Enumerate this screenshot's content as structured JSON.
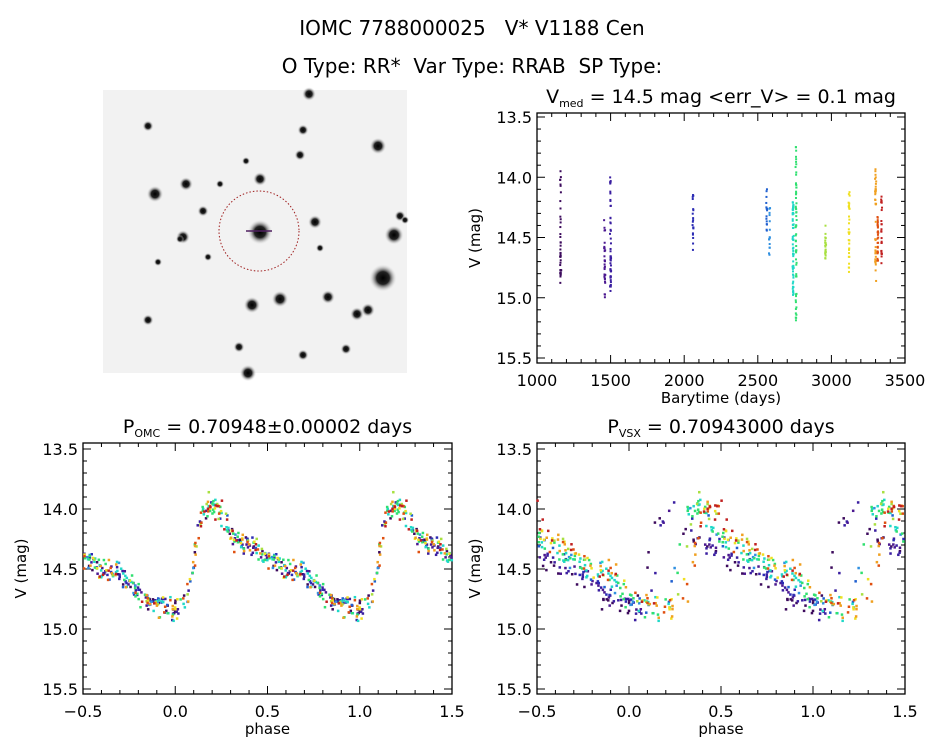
{
  "header": {
    "title": "IOMC 7788000025   V* V1188 Cen",
    "subtitle": "O Type: RR*  Var Type: RRAB  SP Type:"
  },
  "chart_data": [
    {
      "type": "image",
      "description_label": "",
      "stars_field": true
    },
    {
      "type": "scatter",
      "title_main": "V",
      "title_sub": "med",
      "title_rest": " = 14.5 mag <err_V> = 0.1 mag",
      "xlabel": "Barytime (days)",
      "ylabel": "V (mag)",
      "xlim": [
        1000,
        3500
      ],
      "ylim": [
        13.5,
        15.5
      ],
      "y_inverted": true,
      "xticks": [
        "1000",
        "1500",
        "2000",
        "2500",
        "3000",
        "3500"
      ],
      "yticks": [
        "13.5",
        "14.0",
        "14.5",
        "15.0",
        "15.5"
      ],
      "seasons": [
        {
          "t": 1160,
          "vmin": 13.95,
          "vmax": 14.88,
          "color": "#3c0a5c",
          "n": 40,
          "vsx_shift": 0.0
        },
        {
          "t": 1460,
          "vmin": 14.3,
          "vmax": 15.0,
          "color": "#4b1890",
          "n": 30,
          "vsx_shift": 0.05
        },
        {
          "t": 1500,
          "vmin": 14.0,
          "vmax": 14.95,
          "color": "#3a1ea0",
          "n": 50,
          "vsx_shift": 0.05
        },
        {
          "t": 2060,
          "vmin": 14.1,
          "vmax": 14.62,
          "color": "#2c2cb4",
          "n": 20,
          "vsx_shift": 0.1
        },
        {
          "t": 2560,
          "vmin": 14.08,
          "vmax": 14.5,
          "color": "#2060d0",
          "n": 15,
          "vsx_shift": 0.15
        },
        {
          "t": 2580,
          "vmin": 14.25,
          "vmax": 14.65,
          "color": "#3090e0",
          "n": 15,
          "vsx_shift": 0.15
        },
        {
          "t": 2740,
          "vmin": 14.2,
          "vmax": 15.0,
          "color": "#20d8c8",
          "n": 60,
          "vsx_shift": 0.17
        },
        {
          "t": 2760,
          "vmin": 13.75,
          "vmax": 15.2,
          "color": "#30e070",
          "n": 60,
          "vsx_shift": 0.17
        },
        {
          "t": 2960,
          "vmin": 14.37,
          "vmax": 14.68,
          "color": "#a8e040",
          "n": 20,
          "vsx_shift": 0.2
        },
        {
          "t": 3120,
          "vmin": 14.12,
          "vmax": 14.8,
          "color": "#f0e020",
          "n": 30,
          "vsx_shift": 0.22
        },
        {
          "t": 3300,
          "vmin": 13.9,
          "vmax": 14.88,
          "color": "#f0a020",
          "n": 35,
          "vsx_shift": 0.25
        },
        {
          "t": 3315,
          "vmin": 14.3,
          "vmax": 14.7,
          "color": "#e05010",
          "n": 30,
          "vsx_shift": 0.25
        },
        {
          "t": 3340,
          "vmin": 14.12,
          "vmax": 14.72,
          "color": "#c02020",
          "n": 25,
          "vsx_shift": 0.25
        }
      ]
    },
    {
      "type": "scatter",
      "title_main": "P",
      "title_sub": "OMC",
      "title_rest": " = 0.70948±0.00002 days",
      "xlabel": "phase",
      "ylabel": "V (mag)",
      "xlim": [
        -0.5,
        1.5
      ],
      "ylim": [
        13.5,
        15.5
      ],
      "y_inverted": true,
      "xticks": [
        "-0.5",
        "0.0",
        "0.5",
        "1.0",
        "1.5"
      ],
      "yticks": [
        "13.5",
        "14.0",
        "14.5",
        "15.0",
        "15.5"
      ],
      "template": [
        [
          0,
          14.85
        ],
        [
          0.06,
          14.75
        ],
        [
          0.1,
          14.45
        ],
        [
          0.15,
          14.0
        ],
        [
          0.2,
          13.95
        ],
        [
          0.25,
          14.05
        ],
        [
          0.32,
          14.25
        ],
        [
          0.42,
          14.3
        ],
        [
          0.5,
          14.42
        ],
        [
          0.6,
          14.5
        ],
        [
          0.7,
          14.55
        ],
        [
          0.8,
          14.7
        ],
        [
          0.9,
          14.8
        ],
        [
          1.0,
          14.85
        ]
      ]
    },
    {
      "type": "scatter",
      "title_main": "P",
      "title_sub": "VSX",
      "title_rest": " = 0.70943000 days",
      "xlabel": "phase",
      "ylabel": "V (mag)",
      "xlim": [
        -0.5,
        1.5
      ],
      "ylim": [
        13.5,
        15.5
      ],
      "y_inverted": true,
      "xticks": [
        "-0.5",
        "0.0",
        "0.5",
        "1.0",
        "1.5"
      ],
      "yticks": [
        "13.5",
        "14.0",
        "14.5",
        "15.0",
        "15.5"
      ]
    }
  ]
}
